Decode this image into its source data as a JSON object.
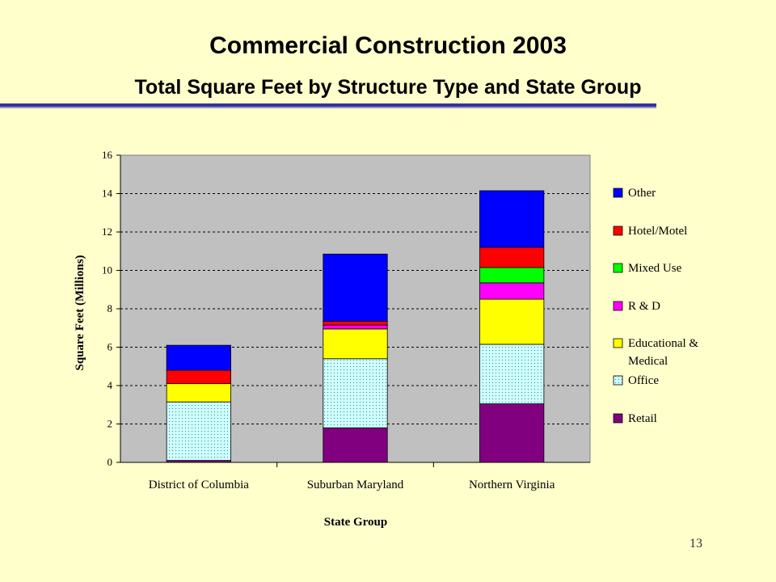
{
  "slide": {
    "title": "Commercial Construction 2003",
    "subtitle": "Total Square Feet by Structure Type and State Group",
    "page_number": "13"
  },
  "chart_data": {
    "type": "bar",
    "stacked": true,
    "title": "",
    "xlabel": "State Group",
    "ylabel": "Square Feet (Millions)",
    "categories": [
      "District of Columbia",
      "Suburban Maryland",
      "Northern Virginia"
    ],
    "ylim": [
      0,
      16
    ],
    "yticks": [
      0,
      2,
      4,
      6,
      8,
      10,
      12,
      14,
      16
    ],
    "grid": true,
    "legend_position": "right",
    "plot_background": "#c0c0c0",
    "series": [
      {
        "name": "Retail",
        "color": "#800080",
        "pattern": "solid",
        "values": [
          0.1,
          1.8,
          3.05
        ]
      },
      {
        "name": "Office",
        "color": "#ccffff",
        "pattern": "dots",
        "values": [
          3.05,
          3.6,
          3.1
        ]
      },
      {
        "name": "Educational & Medical",
        "color": "#ffff00",
        "pattern": "solid",
        "values": [
          0.95,
          1.55,
          2.35
        ]
      },
      {
        "name": "R & D",
        "color": "#ff00ff",
        "pattern": "solid",
        "values": [
          0,
          0.2,
          0.85
        ]
      },
      {
        "name": "Mixed Use",
        "color": "#00ff00",
        "pattern": "solid",
        "values": [
          0,
          0,
          0.8
        ]
      },
      {
        "name": "Hotel/Motel",
        "color": "#ff0000",
        "pattern": "solid",
        "values": [
          0.7,
          0.2,
          1.05
        ]
      },
      {
        "name": "Other",
        "color": "#0000ff",
        "pattern": "solid",
        "values": [
          1.3,
          3.5,
          2.95
        ]
      }
    ],
    "legend_order": [
      "Other",
      "Hotel/Motel",
      "Mixed Use",
      "R & D",
      "Educational & Medical",
      "Office",
      "Retail"
    ],
    "legend_labels": {
      "Other": [
        "Other"
      ],
      "Hotel/Motel": [
        "Hotel/Motel"
      ],
      "Mixed Use": [
        "Mixed Use"
      ],
      "R & D": [
        "R & D"
      ],
      "Educational & Medical": [
        "Educational &",
        "Medical"
      ],
      "Office": [
        "Office"
      ],
      "Retail": [
        "Retail"
      ]
    }
  }
}
